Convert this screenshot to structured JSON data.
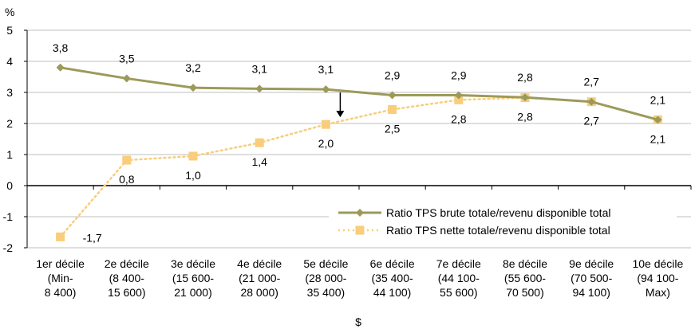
{
  "chart_data": {
    "type": "line",
    "ylabel": "%",
    "xlabel": "$",
    "ylim": [
      -2,
      5
    ],
    "yticks": [
      -2,
      -1,
      0,
      1,
      2,
      3,
      4,
      5
    ],
    "grid": true,
    "legend_position": "bottom-right",
    "categories": [
      [
        "1er décile",
        "(Min-",
        "8 400)"
      ],
      [
        "2e décile",
        "(8 400-",
        "15 600)"
      ],
      [
        "3e décile",
        "(15 600-",
        "21 000)"
      ],
      [
        "4e décile",
        "(21 000-",
        "28 000)"
      ],
      [
        "5e décile",
        "(28 000-",
        "35 400)"
      ],
      [
        "6e décile",
        "(35 400-",
        "44 100)"
      ],
      [
        "7e décile",
        "(44 100-",
        "55 600)"
      ],
      [
        "8e décile",
        "(55 600-",
        "70 500)"
      ],
      [
        "9e décile",
        "(70 500-",
        "94 100)"
      ],
      [
        "10e décile",
        "(94 100-",
        "Max)"
      ]
    ],
    "series": [
      {
        "name": "Ratio TPS brute totale/revenu disponible total",
        "color": "#9c9a5a",
        "marker": "diamond",
        "values": [
          3.8,
          3.45,
          3.15,
          3.12,
          3.1,
          2.91,
          2.91,
          2.84,
          2.7,
          2.12
        ],
        "labels": [
          "3,8",
          "3,5",
          "3,2",
          "3,1",
          "3,1",
          "2,9",
          "2,9",
          "2,8",
          "2,7",
          "2,1"
        ]
      },
      {
        "name": "Ratio TPS nette totale/revenu disponible total",
        "color": "#f9cd7a",
        "marker": "square",
        "values": [
          -1.65,
          0.82,
          0.95,
          1.38,
          1.97,
          2.45,
          2.76,
          2.83,
          2.7,
          2.12
        ],
        "labels": [
          "-1,7",
          "0,8",
          "1,0",
          "1,4",
          "2,0",
          "2,5",
          "2,8",
          "2,8",
          "2,7",
          "2,1"
        ]
      }
    ],
    "annotation": {
      "type": "arrow",
      "category_index": 4,
      "from": 3.1,
      "to": 2.1
    }
  }
}
